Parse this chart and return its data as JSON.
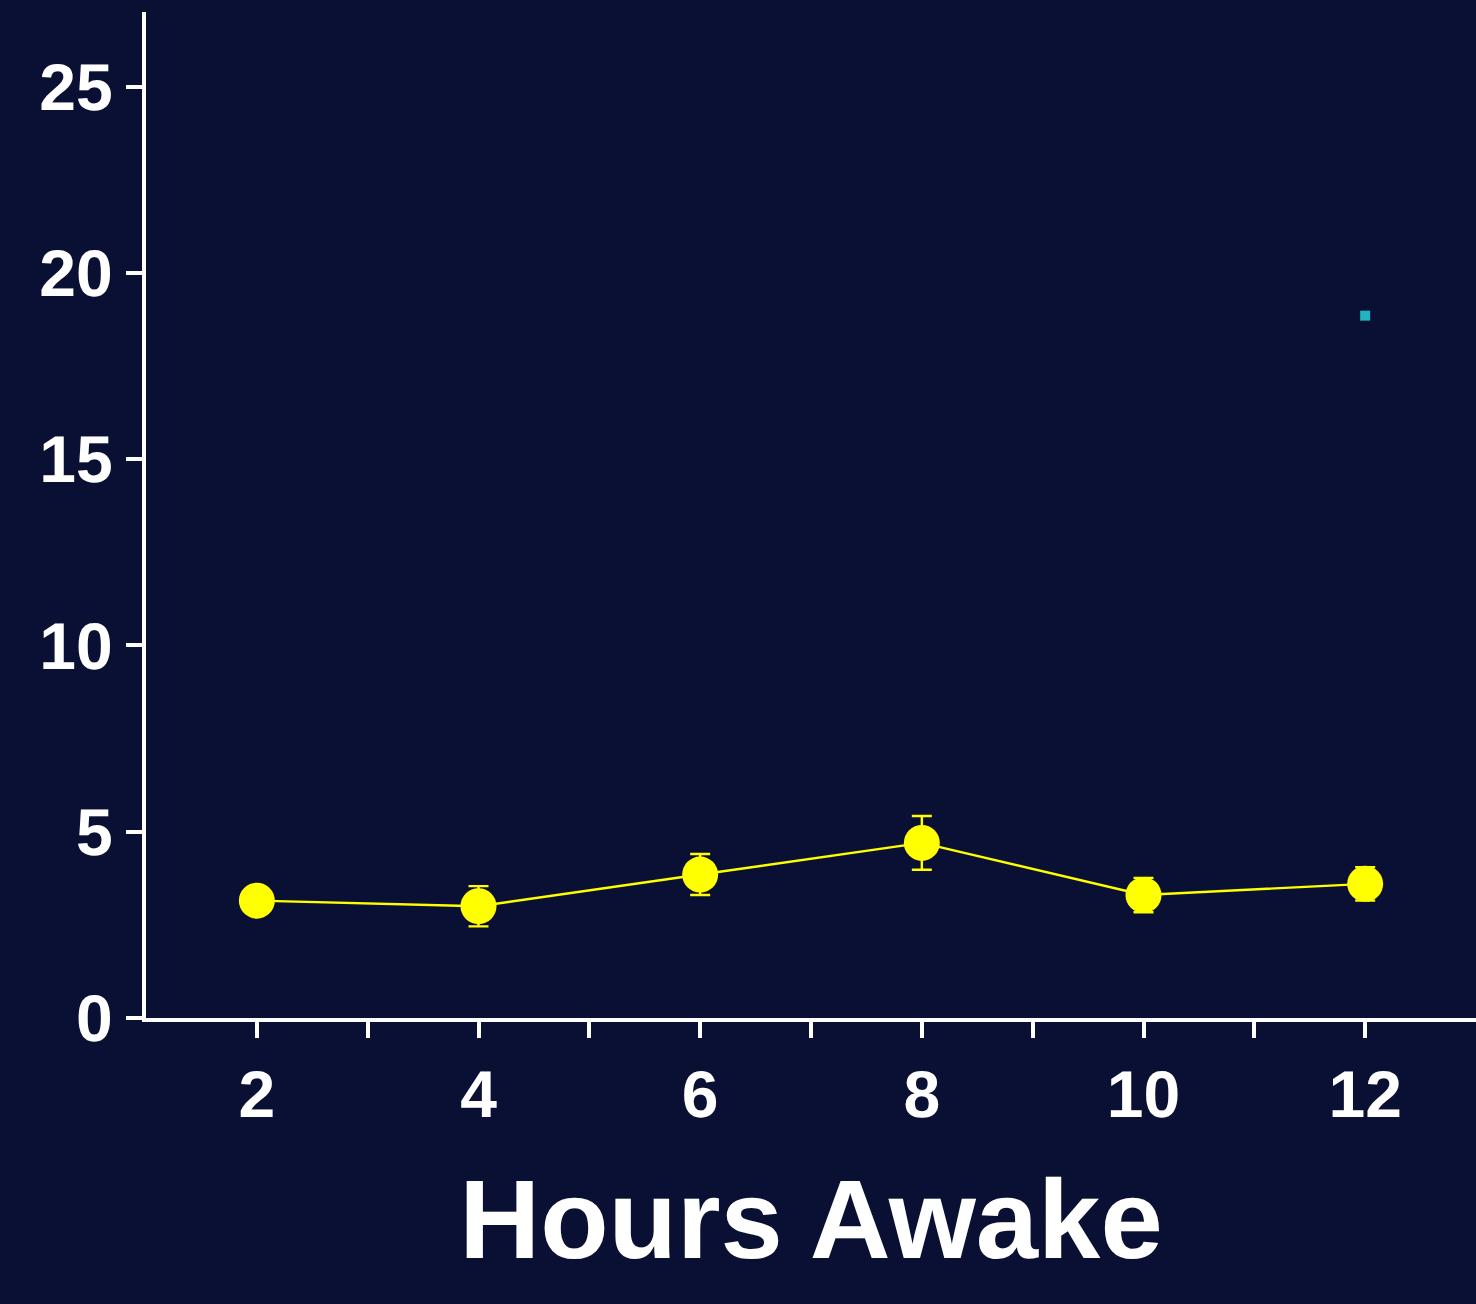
{
  "chart_data": {
    "type": "line",
    "xlabel": "Hours Awake",
    "x": [
      2,
      4,
      6,
      8,
      10,
      12
    ],
    "series": [
      {
        "color": "#ffff00",
        "values": [
          3.15,
          3.0,
          3.85,
          4.7,
          3.3,
          3.6
        ],
        "errors": [
          null,
          0.54,
          0.55,
          0.72,
          0.46,
          0.45
        ],
        "marker": "circle"
      },
      {
        "type": "scatter",
        "color": "#1fb4c0",
        "values": [
          null,
          null,
          null,
          null,
          null,
          18.85
        ],
        "marker": "square"
      }
    ],
    "xlim": [
      1,
      13
    ],
    "xticks": [
      2,
      {
        "value": 3,
        "label": null
      },
      4,
      {
        "value": 5,
        "label": null
      },
      6,
      {
        "value": 7,
        "label": null
      },
      8,
      {
        "value": 9,
        "label": null
      },
      10,
      {
        "value": 11,
        "label": null
      },
      12
    ],
    "ylim": [
      0,
      27
    ],
    "yticks": [
      0,
      5,
      10,
      15,
      20,
      25
    ],
    "grid": false
  }
}
